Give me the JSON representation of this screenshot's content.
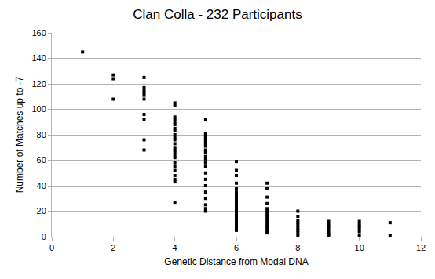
{
  "chart_data": {
    "type": "scatter",
    "title": "Clan Colla - 232 Participants",
    "x_label": "Genetic Distance from Modal DNA",
    "y_label": "Number of Matches up to -7",
    "x": [
      1,
      2,
      2,
      2,
      3,
      3,
      3,
      3,
      3,
      3,
      3,
      3,
      3,
      3,
      4,
      4,
      4,
      4,
      4,
      4,
      4,
      4,
      4,
      4,
      4,
      4,
      4,
      4,
      4,
      4,
      4,
      4,
      4,
      4,
      4,
      4,
      4,
      4,
      5,
      5,
      5,
      5,
      5,
      5,
      5,
      5,
      5,
      5,
      5,
      5,
      5,
      5,
      5,
      5,
      5,
      5,
      5,
      5,
      5,
      6,
      6,
      6,
      6,
      6,
      6,
      6,
      6,
      6,
      6,
      6,
      6,
      6,
      6,
      6,
      6,
      6,
      6,
      6,
      6,
      6,
      7,
      7,
      7,
      7,
      7,
      7,
      7,
      7,
      7,
      7,
      7,
      7,
      7,
      7,
      7,
      8,
      8,
      8,
      8,
      8,
      8,
      8,
      8,
      8,
      9,
      9,
      9,
      9,
      9,
      9,
      9,
      10,
      10,
      10,
      10,
      10,
      10,
      11,
      11
    ],
    "values": [
      145,
      127,
      124,
      108,
      125,
      117,
      115,
      113,
      111,
      108,
      96,
      92,
      76,
      68,
      105,
      103,
      94,
      92,
      90,
      88,
      85,
      83,
      80,
      78,
      76,
      73,
      70,
      68,
      66,
      64,
      62,
      58,
      55,
      52,
      48,
      45,
      43,
      27,
      92,
      81,
      79,
      77,
      75,
      73,
      71,
      68,
      66,
      63,
      61,
      58,
      55,
      50,
      45,
      40,
      35,
      30,
      25,
      22,
      20,
      59,
      52,
      48,
      42,
      38,
      35,
      32,
      30,
      28,
      26,
      24,
      22,
      20,
      18,
      16,
      14,
      12,
      10,
      8,
      6,
      5,
      42,
      38,
      31,
      26,
      22,
      20,
      18,
      16,
      14,
      12,
      10,
      8,
      6,
      4,
      3,
      20,
      16,
      13,
      11,
      9,
      7,
      5,
      3,
      1,
      12,
      10,
      8,
      6,
      4,
      2,
      1,
      12,
      10,
      8,
      6,
      4,
      1,
      11,
      1
    ],
    "color": "#000000",
    "marker": "square",
    "xlim": [
      0,
      12
    ],
    "xticks": [
      0,
      2,
      4,
      6,
      8,
      10,
      12
    ],
    "ylim": [
      0,
      160
    ],
    "yticks": [
      0,
      20,
      40,
      60,
      80,
      100,
      120,
      140,
      160
    ],
    "grid": true
  }
}
